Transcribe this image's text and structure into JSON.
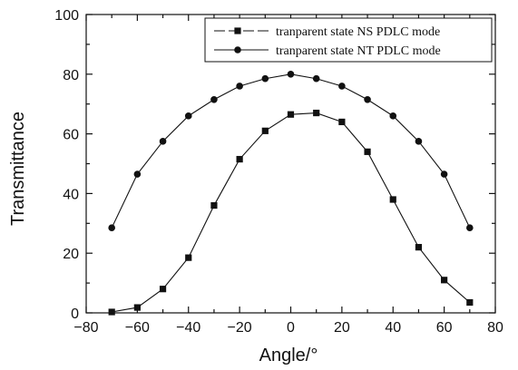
{
  "chart_data": {
    "type": "line",
    "xlabel": "Angle/°",
    "ylabel": "Transmittance",
    "xlim": [
      -80,
      80
    ],
    "ylim": [
      0,
      100
    ],
    "xticks": [
      "-80",
      "-60",
      "-40",
      "-20",
      "0",
      "20",
      "40",
      "60",
      "80"
    ],
    "yticks": [
      "0",
      "20",
      "40",
      "60",
      "80",
      "100"
    ],
    "grid": false,
    "legend": "top-right",
    "series": [
      {
        "name": "tranparent state NS PDLC mode",
        "marker": "square",
        "x": [
          -70,
          -60,
          -50,
          -40,
          -30,
          -20,
          -10,
          0,
          10,
          20,
          30,
          40,
          50,
          60,
          70
        ],
        "values": [
          0.3,
          1.8,
          8,
          18.5,
          36,
          51.5,
          61,
          66.5,
          67,
          64,
          54,
          38,
          22,
          11,
          3.5
        ]
      },
      {
        "name": "tranparent state NT PDLC mode",
        "marker": "circle",
        "x": [
          -70,
          -60,
          -50,
          -40,
          -30,
          -20,
          -10,
          0,
          10,
          20,
          30,
          40,
          50,
          60,
          70
        ],
        "values": [
          28.5,
          46.5,
          57.5,
          66,
          71.5,
          76,
          78.5,
          80,
          78.5,
          76,
          71.5,
          66,
          57.5,
          46.5,
          28.5
        ]
      }
    ]
  },
  "colors": {
    "ink": "#111111",
    "background": "#ffffff"
  }
}
